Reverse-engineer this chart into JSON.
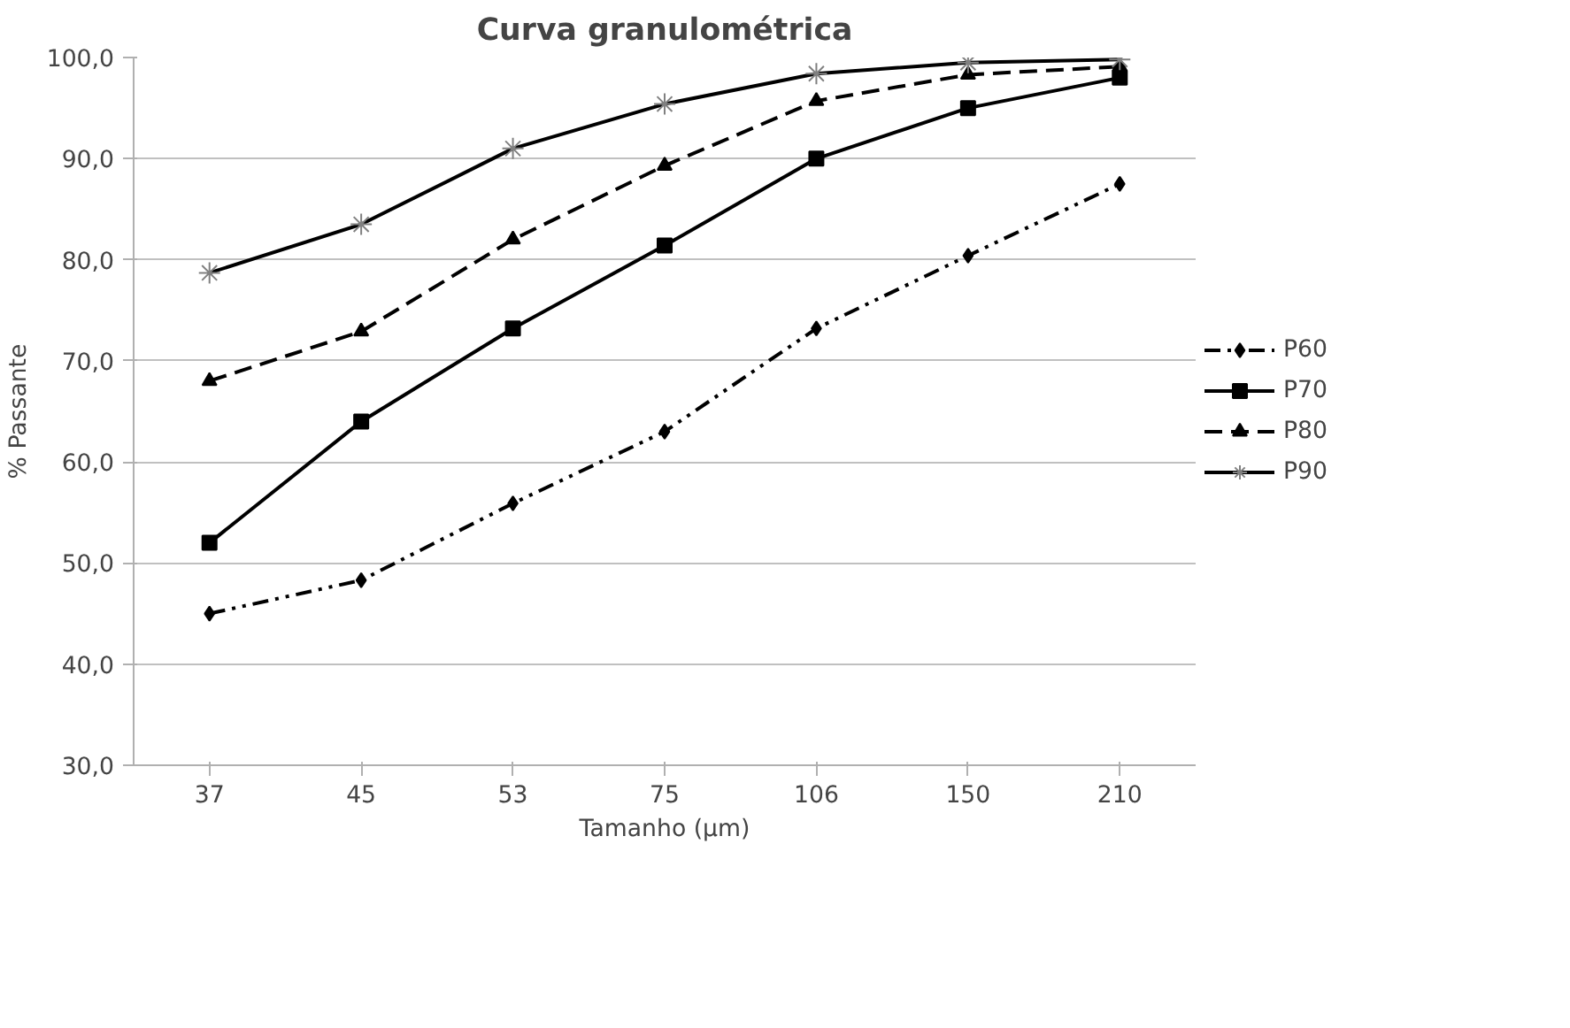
{
  "chart_data": {
    "type": "line",
    "title": "Curva granulométrica",
    "xlabel": "Tamanho (µm)",
    "ylabel": "% Passante",
    "categories": [
      "37",
      "45",
      "53",
      "75",
      "106",
      "150",
      "210"
    ],
    "ylim": [
      30,
      100
    ],
    "yticks": [
      {
        "value": 30,
        "label": "30,0"
      },
      {
        "value": 40,
        "label": "40,0"
      },
      {
        "value": 50,
        "label": "50,0"
      },
      {
        "value": 60,
        "label": "60,0"
      },
      {
        "value": 70,
        "label": "70,0"
      },
      {
        "value": 80,
        "label": "80,0"
      },
      {
        "value": 90,
        "label": "90,0"
      },
      {
        "value": 100,
        "label": "100,0"
      }
    ],
    "grid": "y",
    "legend": "right",
    "series": [
      {
        "name": "P60",
        "color": "#000000",
        "marker": "diamond",
        "line_style": "dotted",
        "values": [
          45.0,
          48.3,
          55.9,
          63.0,
          73.2,
          80.4,
          87.5
        ]
      },
      {
        "name": "P70",
        "color": "#000000",
        "marker": "square",
        "line_style": "solid",
        "values": [
          52.0,
          64.0,
          73.2,
          81.4,
          90.0,
          95.0,
          98.0
        ]
      },
      {
        "name": "P80",
        "color": "#000000",
        "marker": "triangle",
        "line_style": "dashed",
        "values": [
          68.0,
          72.9,
          82.0,
          89.3,
          95.7,
          98.3,
          99.1
        ]
      },
      {
        "name": "P90",
        "color": "#000000",
        "marker": "cross",
        "line_style": "solid",
        "values": [
          78.7,
          83.5,
          91.0,
          95.4,
          98.4,
          99.5,
          99.8
        ]
      }
    ]
  }
}
